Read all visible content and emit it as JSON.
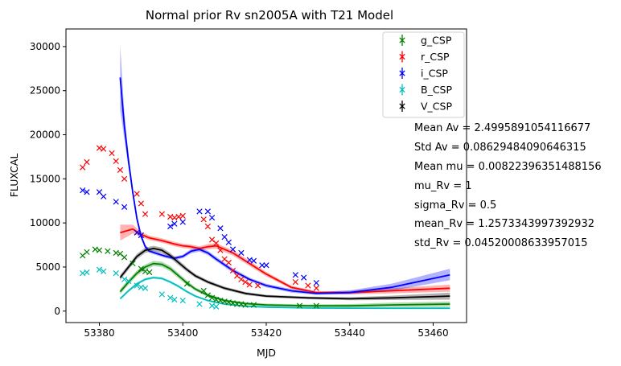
{
  "chart_data": {
    "type": "scatter",
    "title": "Normal prior Rv sn2005A with T21 Model",
    "xlabel": "MJD",
    "ylabel": "FLUXCAL",
    "xlim": [
      53372,
      53468
    ],
    "ylim": [
      -1300,
      32000
    ],
    "xticks": [
      53380,
      53400,
      53420,
      53440,
      53460
    ],
    "yticks": [
      0,
      5000,
      10000,
      15000,
      20000,
      25000,
      30000
    ],
    "xtick_labels": [
      "53380",
      "53400",
      "53420",
      "53440",
      "53460"
    ],
    "ytick_labels": [
      "0",
      "5000",
      "10000",
      "15000",
      "20000",
      "25000",
      "30000"
    ],
    "grid": false,
    "legend_position": "top-right",
    "series": [
      {
        "name": "g_CSP",
        "color": "#008000",
        "points": [
          [
            53376,
            6300
          ],
          [
            53377,
            6700
          ],
          [
            53379,
            7000
          ],
          [
            53380,
            6900
          ],
          [
            53382,
            6800
          ],
          [
            53384,
            6600
          ],
          [
            53385,
            6500
          ],
          [
            53386,
            6100
          ],
          [
            53388,
            5400
          ],
          [
            53390,
            4800
          ],
          [
            53391,
            4500
          ],
          [
            53392,
            4400
          ],
          [
            53401,
            3100
          ],
          [
            53405,
            2300
          ],
          [
            53406,
            1800
          ],
          [
            53407,
            1500
          ],
          [
            53408,
            1300
          ],
          [
            53409,
            1200
          ],
          [
            53410,
            1100
          ],
          [
            53411,
            1000
          ],
          [
            53412,
            900
          ],
          [
            53413,
            800
          ],
          [
            53414,
            800
          ],
          [
            53415,
            700
          ],
          [
            53417,
            700
          ],
          [
            53428,
            600
          ],
          [
            53432,
            600
          ]
        ],
        "model": {
          "x": [
            53385,
            53387,
            53389,
            53391,
            53393,
            53395,
            53397,
            53399,
            53401,
            53403,
            53406,
            53410,
            53415,
            53420,
            53430,
            53440,
            53450,
            53464
          ],
          "y": [
            2200,
            3300,
            4300,
            5000,
            5400,
            5300,
            4800,
            4000,
            3200,
            2500,
            1800,
            1200,
            850,
            700,
            600,
            600,
            700,
            800
          ],
          "lo": [
            1900,
            3000,
            4000,
            4700,
            5100,
            5000,
            4500,
            3700,
            2950,
            2300,
            1600,
            1050,
            700,
            550,
            450,
            400,
            450,
            480
          ],
          "hi": [
            2500,
            3600,
            4600,
            5300,
            5700,
            5600,
            5100,
            4300,
            3450,
            2700,
            2000,
            1350,
            1000,
            850,
            750,
            800,
            950,
            1100
          ]
        }
      },
      {
        "name": "r_CSP",
        "color": "#ff0000",
        "points": [
          [
            53376,
            16300
          ],
          [
            53377,
            16900
          ],
          [
            53380,
            18500
          ],
          [
            53381,
            18400
          ],
          [
            53383,
            17900
          ],
          [
            53384,
            17000
          ],
          [
            53385,
            16000
          ],
          [
            53386,
            15000
          ],
          [
            53389,
            13300
          ],
          [
            53390,
            12200
          ],
          [
            53391,
            11000
          ],
          [
            53395,
            11000
          ],
          [
            53397,
            10700
          ],
          [
            53398,
            10600
          ],
          [
            53399,
            10700
          ],
          [
            53400,
            10800
          ],
          [
            53405,
            10400
          ],
          [
            53406,
            9600
          ],
          [
            53407,
            8100
          ],
          [
            53408,
            7700
          ],
          [
            53409,
            6900
          ],
          [
            53410,
            5900
          ],
          [
            53411,
            5500
          ],
          [
            53412,
            4600
          ],
          [
            53413,
            4000
          ],
          [
            53414,
            3600
          ],
          [
            53415,
            3300
          ],
          [
            53416,
            3000
          ],
          [
            53418,
            2900
          ],
          [
            53427,
            3300
          ],
          [
            53430,
            2900
          ],
          [
            53432,
            2600
          ]
        ],
        "model": {
          "x": [
            53385,
            53388,
            53390,
            53392,
            53395,
            53398,
            53400,
            53402,
            53404,
            53406,
            53408,
            53412,
            53416,
            53420,
            53426,
            53432,
            53440,
            53450,
            53464
          ],
          "y": [
            8900,
            9300,
            8700,
            8300,
            8000,
            7600,
            7400,
            7300,
            7100,
            7300,
            7400,
            6600,
            5400,
            4200,
            2700,
            2100,
            2100,
            2300,
            2600
          ],
          "lo": [
            8000,
            8800,
            8400,
            8050,
            7750,
            7350,
            7150,
            7050,
            6850,
            7000,
            7100,
            6300,
            5100,
            3950,
            2500,
            1950,
            1900,
            2000,
            2200
          ],
          "hi": [
            9800,
            9800,
            9000,
            8550,
            8250,
            7850,
            7650,
            7550,
            7350,
            7600,
            7700,
            6900,
            5700,
            4450,
            2900,
            2250,
            2300,
            2600,
            3000
          ]
        }
      },
      {
        "name": "i_CSP",
        "color": "#0000ff",
        "points": [
          [
            53376,
            13700
          ],
          [
            53377,
            13500
          ],
          [
            53380,
            13500
          ],
          [
            53381,
            13000
          ],
          [
            53384,
            12400
          ],
          [
            53386,
            11800
          ],
          [
            53389,
            8900
          ],
          [
            53390,
            8600
          ],
          [
            53397,
            9600
          ],
          [
            53398,
            9900
          ],
          [
            53400,
            10100
          ],
          [
            53404,
            11300
          ],
          [
            53406,
            11300
          ],
          [
            53407,
            10600
          ],
          [
            53409,
            9400
          ],
          [
            53410,
            8400
          ],
          [
            53411,
            7800
          ],
          [
            53412,
            7000
          ],
          [
            53414,
            6600
          ],
          [
            53416,
            5800
          ],
          [
            53417,
            5700
          ],
          [
            53419,
            5200
          ],
          [
            53420,
            5200
          ],
          [
            53427,
            4100
          ],
          [
            53429,
            3800
          ],
          [
            53432,
            3200
          ]
        ],
        "model": {
          "x": [
            53385,
            53386,
            53387,
            53388,
            53389,
            53390,
            53391,
            53392,
            53394,
            53396,
            53398,
            53400,
            53402,
            53404,
            53406,
            53408,
            53412,
            53416,
            53420,
            53426,
            53432,
            53440,
            53450,
            53464
          ],
          "y": [
            26500,
            21000,
            17000,
            13500,
            10500,
            8500,
            7300,
            6800,
            6500,
            6200,
            6000,
            6200,
            6800,
            7000,
            6600,
            5900,
            4600,
            3600,
            2900,
            2300,
            2000,
            2100,
            2700,
            4100
          ],
          "lo": [
            22800,
            19500,
            16200,
            13000,
            10100,
            8200,
            7050,
            6600,
            6300,
            6000,
            5800,
            6000,
            6550,
            6750,
            6350,
            5650,
            4350,
            3400,
            2700,
            2100,
            1850,
            1900,
            2300,
            3500
          ],
          "hi": [
            30200,
            22500,
            17800,
            14000,
            10900,
            8800,
            7550,
            7000,
            6700,
            6400,
            6200,
            6400,
            7050,
            7250,
            6850,
            6150,
            4850,
            3800,
            3100,
            2500,
            2150,
            2350,
            3100,
            4800
          ]
        }
      },
      {
        "name": "B_CSP",
        "color": "#00bfbf",
        "points": [
          [
            53376,
            4300
          ],
          [
            53377,
            4400
          ],
          [
            53380,
            4700
          ],
          [
            53381,
            4500
          ],
          [
            53384,
            4300
          ],
          [
            53386,
            3600
          ],
          [
            53387,
            3400
          ],
          [
            53389,
            2900
          ],
          [
            53390,
            2700
          ],
          [
            53391,
            2600
          ],
          [
            53395,
            1900
          ],
          [
            53397,
            1500
          ],
          [
            53398,
            1300
          ],
          [
            53400,
            1200
          ],
          [
            53404,
            800
          ],
          [
            53407,
            600
          ],
          [
            53408,
            500
          ]
        ],
        "model": {
          "x": [
            53385,
            53387,
            53389,
            53391,
            53393,
            53395,
            53397,
            53399,
            53401,
            53403,
            53406,
            53410,
            53415,
            53420,
            53430,
            53440,
            53450,
            53464
          ],
          "y": [
            1400,
            2300,
            3100,
            3600,
            3800,
            3700,
            3300,
            2800,
            2200,
            1700,
            1200,
            800,
            550,
            450,
            350,
            330,
            320,
            320
          ],
          "lo": [
            1250,
            2150,
            2950,
            3450,
            3650,
            3550,
            3150,
            2650,
            2050,
            1570,
            1080,
            700,
            460,
            370,
            280,
            260,
            250,
            240
          ],
          "hi": [
            1550,
            2450,
            3250,
            3750,
            3950,
            3850,
            3450,
            2950,
            2350,
            1830,
            1320,
            900,
            640,
            530,
            420,
            400,
            390,
            400
          ]
        }
      },
      {
        "name": "V_CSP",
        "color": "#000000",
        "points": [],
        "model": {
          "x": [
            53385,
            53387,
            53389,
            53391,
            53393,
            53395,
            53397,
            53399,
            53401,
            53403,
            53406,
            53410,
            53415,
            53420,
            53430,
            53440,
            53450,
            53464
          ],
          "y": [
            3800,
            5000,
            6200,
            6900,
            7100,
            6900,
            6300,
            5500,
            4700,
            4000,
            3300,
            2600,
            2000,
            1700,
            1500,
            1400,
            1500,
            1700
          ],
          "lo": [
            3500,
            4700,
            5900,
            6600,
            6800,
            6600,
            6000,
            5200,
            4450,
            3780,
            3100,
            2420,
            1830,
            1550,
            1350,
            1230,
            1250,
            1300
          ],
          "hi": [
            4100,
            5300,
            6500,
            7200,
            7400,
            7200,
            6600,
            5800,
            4950,
            4220,
            3500,
            2780,
            2170,
            1850,
            1650,
            1570,
            1750,
            2100
          ]
        }
      }
    ]
  },
  "annotations": [
    "Mean Av = 2.4995891054116677",
    "Std Av = 0.08629484090646315",
    "Mean mu = 0.00822396351488156",
    "mu_Rv = 1",
    "sigma_Rv = 0.5",
    "mean_Rv = 1.2573343997392932",
    "std_Rv = 0.04520008633957015"
  ]
}
